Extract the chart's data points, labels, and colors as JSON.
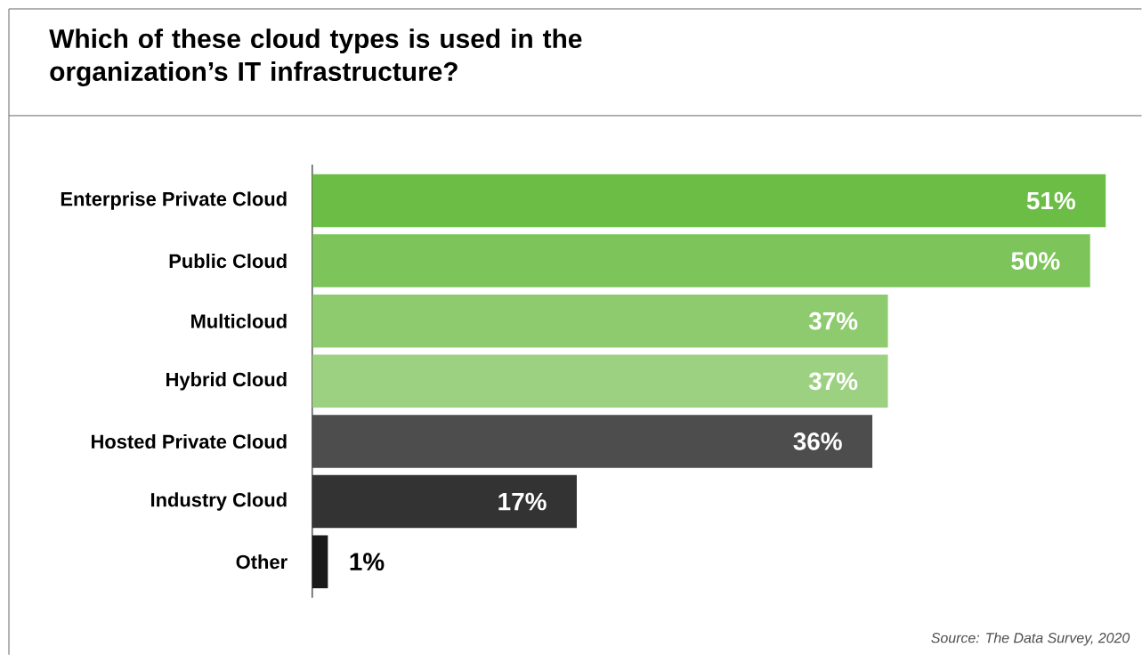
{
  "chart_data": {
    "type": "bar",
    "orientation": "horizontal",
    "title": "Which of these cloud types is used in the organization’s IT infrastructure?",
    "categories": [
      "Enterprise Private Cloud",
      "Public Cloud",
      "Multicloud",
      "Hybrid Cloud",
      "Hosted Private Cloud",
      "Industry Cloud",
      "Other"
    ],
    "values": [
      51,
      50,
      37,
      37,
      36,
      17,
      1
    ],
    "value_labels": [
      "51%",
      "50%",
      "37%",
      "37%",
      "36%",
      "17%",
      "1%"
    ],
    "colors": [
      "#6cbd45",
      "#7dc45a",
      "#8dcb6e",
      "#9dd182",
      "#4d4d4d",
      "#333333",
      "#1a1a1a"
    ],
    "tick_labels": "y",
    "annotations": [
      "Source: The Data Survey, 2020"
    ]
  }
}
